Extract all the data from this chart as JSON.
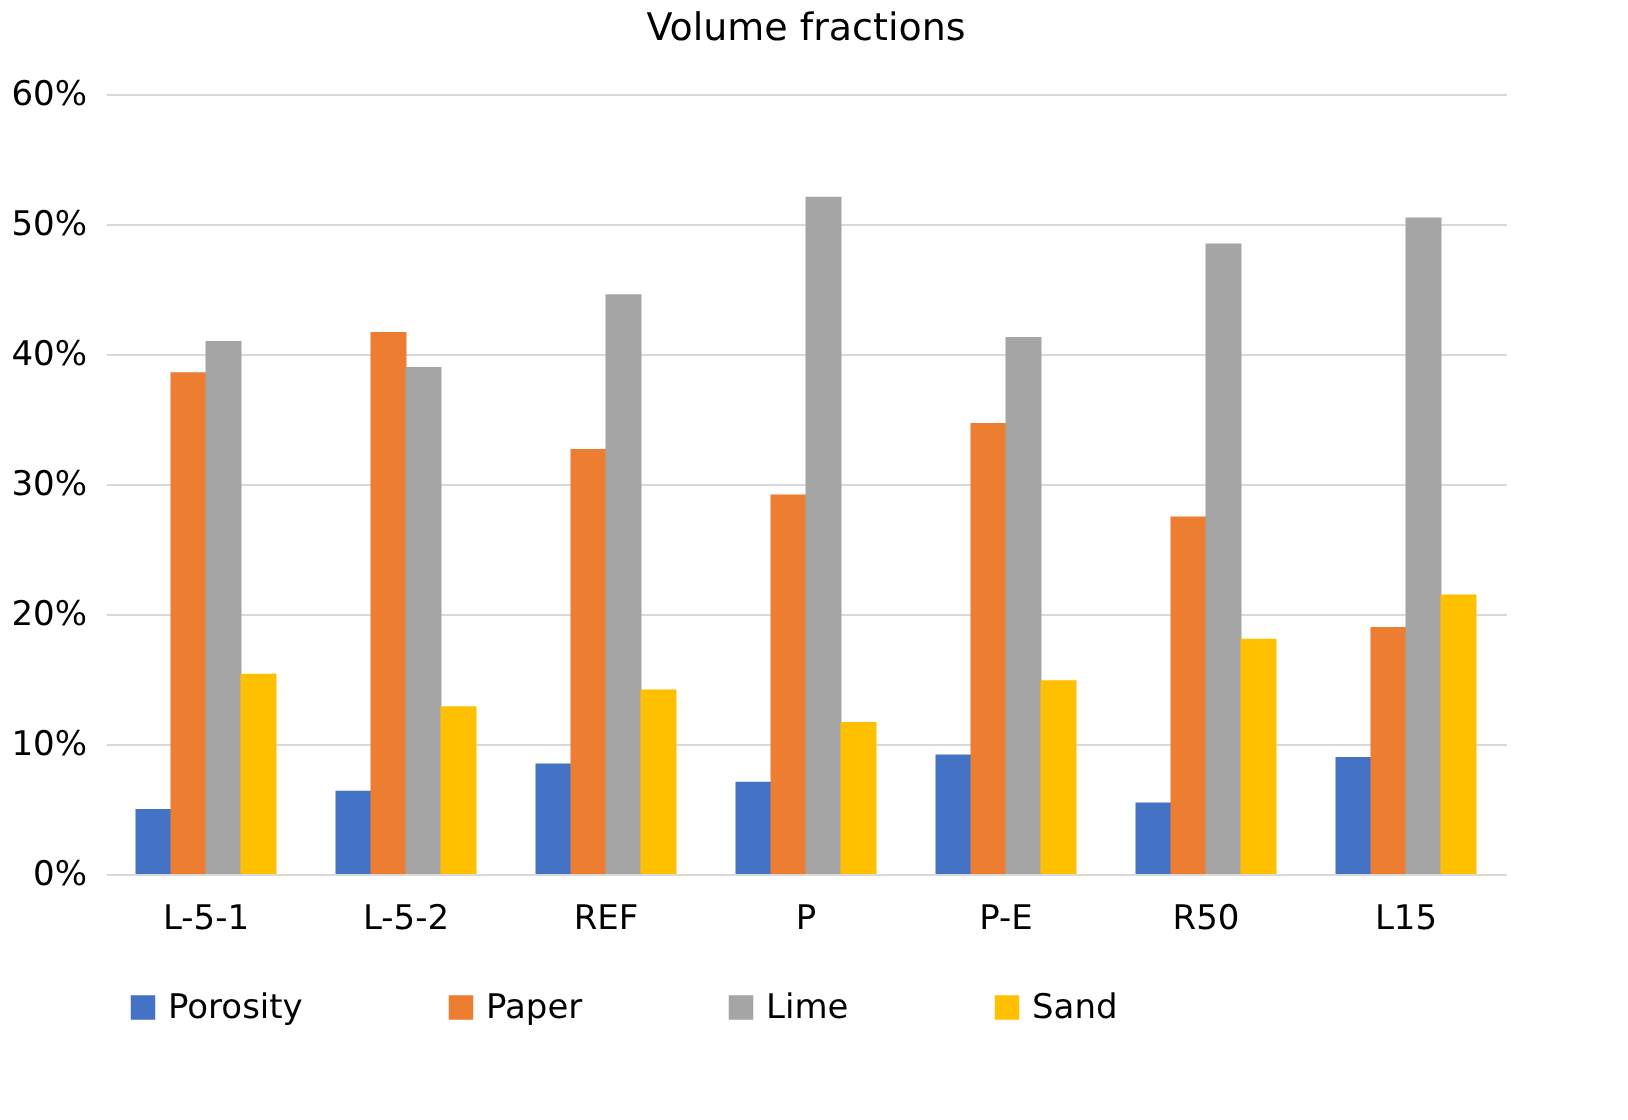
{
  "chart_data": {
    "type": "bar",
    "title": "Volume fractions",
    "categories": [
      "L-5-1",
      "L-5-2",
      "REF",
      "P",
      "P-E",
      "R50",
      "L15"
    ],
    "series": [
      {
        "name": "Porosity",
        "color": "#4472c4",
        "values": [
          5.0,
          6.4,
          8.5,
          7.1,
          9.2,
          5.5,
          9.0
        ]
      },
      {
        "name": "Paper",
        "color": "#ed7d31",
        "values": [
          38.6,
          41.7,
          32.7,
          29.2,
          34.7,
          27.5,
          19.0
        ]
      },
      {
        "name": "Lime",
        "color": "#a5a5a5",
        "values": [
          41.0,
          39.0,
          44.6,
          52.1,
          41.3,
          48.5,
          50.5
        ]
      },
      {
        "name": "Sand",
        "color": "#ffc000",
        "values": [
          15.4,
          12.9,
          14.2,
          11.7,
          14.9,
          18.1,
          21.5
        ]
      }
    ],
    "ylim": [
      0,
      60
    ],
    "yticks": [
      {
        "value": 0,
        "label": "0%"
      },
      {
        "value": 10,
        "label": "10%"
      },
      {
        "value": 20,
        "label": "20%"
      },
      {
        "value": 30,
        "label": "30%"
      },
      {
        "value": 40,
        "label": "40%"
      },
      {
        "value": 50,
        "label": "50%"
      },
      {
        "value": 60,
        "label": "60%"
      }
    ],
    "grid": "y",
    "legend": "bottom"
  }
}
